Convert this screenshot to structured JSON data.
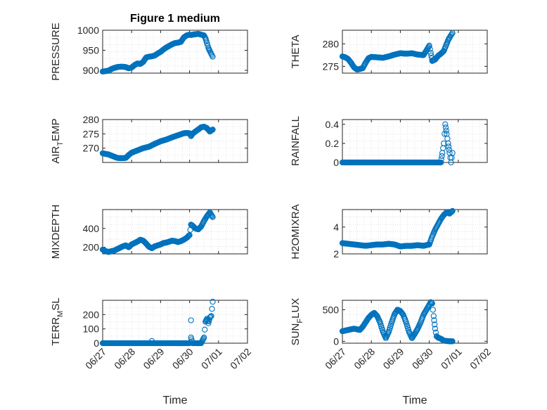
{
  "figure": {
    "title": "Figure 1 medium"
  },
  "chart_data": [
    {
      "type": "scatter",
      "title": "Figure 1 medium",
      "ylabel": {
        "main": "PRESSURE",
        "sub": ""
      },
      "xlabel": "",
      "ylim": [
        893,
        1000
      ],
      "yticks": [
        900,
        950,
        1000
      ],
      "xlim": [
        0,
        5
      ],
      "grid": true,
      "show_x_ticks": false,
      "x": [
        0.0,
        0.1,
        0.2,
        0.3,
        0.4,
        0.5,
        0.6,
        0.7,
        0.8,
        0.9,
        1.0,
        1.1,
        1.2,
        1.3,
        1.4,
        1.5,
        1.6,
        1.7,
        1.8,
        1.9,
        2.0,
        2.1,
        2.2,
        2.3,
        2.4,
        2.5,
        2.6,
        2.7,
        2.8,
        2.9,
        3.0,
        3.05,
        3.1,
        3.2,
        3.3,
        3.4,
        3.5,
        3.55,
        3.6,
        3.65,
        3.7,
        3.75,
        3.8
      ],
      "y": [
        897,
        898,
        899,
        903,
        906,
        908,
        909,
        909,
        908,
        905,
        907,
        913,
        917,
        916,
        921,
        932,
        934,
        935,
        937,
        942,
        946,
        952,
        957,
        961,
        965,
        968,
        969,
        971,
        982,
        987,
        989,
        988,
        989,
        990,
        991,
        989,
        987,
        980,
        968,
        956,
        948,
        941,
        934
      ]
    },
    {
      "type": "scatter",
      "ylabel": {
        "main": "THETA",
        "sub": ""
      },
      "xlabel": "",
      "ylim": [
        273.5,
        283
      ],
      "yticks": [
        275,
        280
      ],
      "xlim": [
        0,
        5
      ],
      "grid": true,
      "show_x_ticks": false,
      "x": [
        0.0,
        0.1,
        0.2,
        0.3,
        0.4,
        0.5,
        0.6,
        0.7,
        0.8,
        0.9,
        1.0,
        1.2,
        1.4,
        1.6,
        1.8,
        2.0,
        2.2,
        2.4,
        2.6,
        2.8,
        2.9,
        3.0,
        3.05,
        3.1,
        3.2,
        3.3,
        3.4,
        3.5,
        3.55,
        3.6,
        3.65,
        3.7,
        3.75,
        3.8
      ],
      "y": [
        277.2,
        277.0,
        276.6,
        275.8,
        274.8,
        274.3,
        274.4,
        274.6,
        275.8,
        276.8,
        277.1,
        277.0,
        276.9,
        277.2,
        277.6,
        277.9,
        277.8,
        277.9,
        277.6,
        277.5,
        278.5,
        279.6,
        278.0,
        276.2,
        276.5,
        277.3,
        277.8,
        278.4,
        279.2,
        280.0,
        280.8,
        281.4,
        281.9,
        282.4
      ]
    },
    {
      "type": "scatter",
      "ylabel": {
        "main": "AIR",
        "sub": "T",
        "rest": "EMP"
      },
      "xlabel": "",
      "ylim": [
        265,
        280
      ],
      "yticks": [
        270,
        275,
        280
      ],
      "xlim": [
        0,
        5
      ],
      "grid": true,
      "show_x_ticks": false,
      "x": [
        0.0,
        0.1,
        0.2,
        0.3,
        0.4,
        0.5,
        0.6,
        0.7,
        0.8,
        0.9,
        1.0,
        1.2,
        1.4,
        1.6,
        1.8,
        2.0,
        2.2,
        2.4,
        2.6,
        2.8,
        2.9,
        3.0,
        3.05,
        3.1,
        3.2,
        3.3,
        3.4,
        3.5,
        3.6,
        3.7,
        3.8
      ],
      "y": [
        268.2,
        268.0,
        267.8,
        267.4,
        267.0,
        266.6,
        266.5,
        266.5,
        266.6,
        267.6,
        268.4,
        269.2,
        270.0,
        270.5,
        271.5,
        272.4,
        273.0,
        273.8,
        274.5,
        275.2,
        275.3,
        275.2,
        274.2,
        275.0,
        275.8,
        276.5,
        277.3,
        277.5,
        277.0,
        275.8,
        276.5
      ]
    },
    {
      "type": "scatter",
      "ylabel": {
        "main": "RAINFALL",
        "sub": ""
      },
      "xlabel": "",
      "ylim": [
        0,
        0.45
      ],
      "yticks": [
        0,
        0.2,
        0.4
      ],
      "xlim": [
        0,
        5
      ],
      "grid": true,
      "show_x_ticks": false,
      "x": [
        0.0,
        0.2,
        0.4,
        0.6,
        0.8,
        1.0,
        1.2,
        1.4,
        1.6,
        1.8,
        2.0,
        2.2,
        2.4,
        2.6,
        2.8,
        3.0,
        3.1,
        3.2,
        3.3,
        3.4,
        3.45,
        3.5,
        3.55,
        3.6,
        3.65,
        3.7,
        3.75,
        3.8
      ],
      "y": [
        0,
        0,
        0,
        0,
        0,
        0,
        0,
        0,
        0,
        0,
        0,
        0,
        0,
        0,
        0,
        0,
        0,
        0,
        0,
        0,
        0.1,
        0.2,
        0.4,
        0.3,
        0.2,
        0.1,
        0,
        0.1
      ]
    },
    {
      "type": "scatter",
      "ylabel": {
        "main": "MIXDEPTH",
        "sub": ""
      },
      "xlabel": "",
      "ylim": [
        130,
        600
      ],
      "yticks": [
        200,
        400
      ],
      "xlim": [
        0,
        5
      ],
      "grid": true,
      "show_x_ticks": false,
      "x": [
        0.0,
        0.1,
        0.2,
        0.3,
        0.4,
        0.5,
        0.6,
        0.7,
        0.8,
        0.9,
        1.0,
        1.1,
        1.2,
        1.3,
        1.4,
        1.5,
        1.6,
        1.7,
        1.8,
        1.9,
        2.0,
        2.1,
        2.2,
        2.3,
        2.4,
        2.5,
        2.6,
        2.7,
        2.8,
        2.9,
        3.0,
        3.05,
        3.1,
        3.2,
        3.3,
        3.4,
        3.5,
        3.6,
        3.7,
        3.8
      ],
      "y": [
        175,
        160,
        150,
        158,
        165,
        180,
        195,
        210,
        220,
        200,
        230,
        245,
        260,
        280,
        270,
        240,
        205,
        190,
        210,
        220,
        230,
        245,
        250,
        260,
        270,
        265,
        255,
        265,
        280,
        300,
        330,
        440,
        430,
        400,
        390,
        420,
        480,
        530,
        570,
        520
      ]
    },
    {
      "type": "scatter",
      "ylabel": {
        "main": "H2OMIXRA",
        "sub": ""
      },
      "xlabel": "",
      "ylim": [
        2,
        5.3
      ],
      "yticks": [
        2,
        4
      ],
      "xlim": [
        0,
        5
      ],
      "grid": true,
      "show_x_ticks": false,
      "x": [
        0.0,
        0.2,
        0.4,
        0.6,
        0.8,
        1.0,
        1.2,
        1.4,
        1.6,
        1.8,
        2.0,
        2.2,
        2.4,
        2.6,
        2.8,
        3.0,
        3.1,
        3.2,
        3.3,
        3.4,
        3.5,
        3.6,
        3.7,
        3.8
      ],
      "y": [
        2.8,
        2.75,
        2.7,
        2.65,
        2.6,
        2.65,
        2.7,
        2.7,
        2.75,
        2.7,
        2.55,
        2.6,
        2.6,
        2.65,
        2.6,
        2.7,
        3.3,
        3.8,
        4.2,
        4.6,
        4.9,
        5.1,
        5.0,
        5.2
      ]
    },
    {
      "type": "scatter",
      "ylabel": {
        "main": "TERR",
        "sub": "M",
        "rest": "SL"
      },
      "xlabel": "Time",
      "ylim": [
        0,
        300
      ],
      "yticks": [
        0,
        100,
        200
      ],
      "xlim": [
        0,
        5
      ],
      "grid": true,
      "show_x_ticks": true,
      "xticklabels": [
        "06/27",
        "06/28",
        "06/29",
        "06/30",
        "07/01",
        "07/02"
      ],
      "x": [
        0.0,
        0.2,
        0.4,
        0.6,
        0.8,
        1.0,
        1.2,
        1.4,
        1.6,
        1.8,
        2.0,
        2.2,
        2.4,
        2.6,
        2.8,
        3.0,
        1.7,
        3.05,
        3.05,
        3.1,
        3.2,
        3.4,
        3.5,
        3.55,
        3.6,
        3.65,
        3.7,
        3.75,
        3.8
      ],
      "y": [
        0,
        0,
        0,
        0,
        0,
        0,
        0,
        0,
        0,
        0,
        0,
        0,
        0,
        0,
        0,
        0,
        15,
        160,
        40,
        0,
        0,
        0,
        40,
        150,
        170,
        140,
        180,
        190,
        290
      ]
    },
    {
      "type": "scatter",
      "ylabel": {
        "main": "SUN",
        "sub": "F",
        "rest": "LUX"
      },
      "xlabel": "Time",
      "ylim": [
        -30,
        650
      ],
      "yticks": [
        0,
        500
      ],
      "xlim": [
        0,
        5
      ],
      "grid": true,
      "show_x_ticks": true,
      "xticklabels": [
        "06/27",
        "06/28",
        "06/29",
        "06/30",
        "07/01",
        "07/02"
      ],
      "x": [
        0.0,
        0.1,
        0.2,
        0.3,
        0.4,
        0.5,
        0.6,
        0.7,
        0.8,
        0.9,
        1.0,
        1.1,
        1.2,
        1.3,
        1.4,
        1.5,
        1.6,
        1.7,
        1.8,
        1.9,
        2.0,
        2.1,
        2.2,
        2.3,
        2.4,
        2.5,
        2.6,
        2.7,
        2.8,
        2.9,
        3.0,
        3.05,
        3.1,
        3.15,
        3.2,
        3.25,
        3.3,
        3.4,
        3.5,
        3.6,
        3.7,
        3.8
      ],
      "y": [
        160,
        170,
        180,
        190,
        200,
        190,
        180,
        230,
        300,
        370,
        420,
        450,
        400,
        300,
        150,
        50,
        150,
        300,
        430,
        500,
        480,
        420,
        300,
        150,
        50,
        120,
        200,
        300,
        420,
        500,
        580,
        620,
        600,
        400,
        200,
        80,
        60,
        40,
        10,
        5,
        0,
        0
      ]
    }
  ]
}
